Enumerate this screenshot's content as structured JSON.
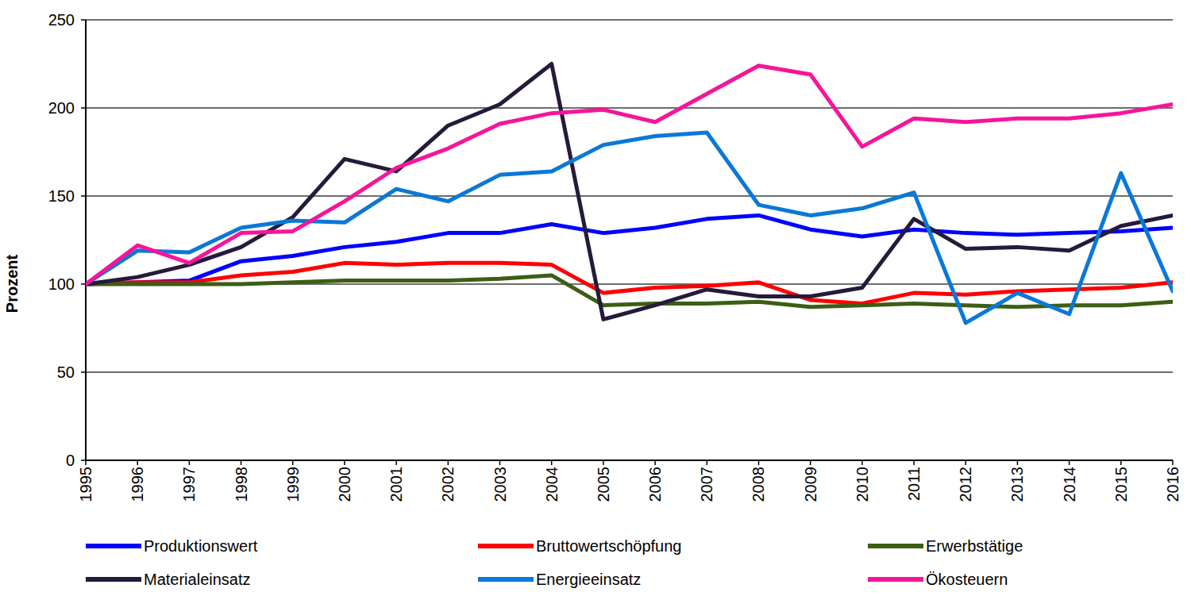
{
  "chart_data": {
    "type": "line",
    "y_label": "Prozent",
    "categories": [
      "1995",
      "1996",
      "1997",
      "1998",
      "1999",
      "2000",
      "2001",
      "2002",
      "2003",
      "2004",
      "2005",
      "2006",
      "2007",
      "2008",
      "2009",
      "2010",
      "2011",
      "2012",
      "2013",
      "2014",
      "2015",
      "2016"
    ],
    "series": [
      {
        "name": "Produktionswert",
        "color": "#0000ff",
        "values": [
          100,
          101,
          102,
          113,
          116,
          121,
          124,
          129,
          129,
          134,
          129,
          132,
          137,
          139,
          131,
          127,
          131,
          129,
          128,
          129,
          130,
          132
        ]
      },
      {
        "name": "Bruttowertschöpfung",
        "color": "#ff0000",
        "values": [
          100,
          101,
          101,
          105,
          107,
          112,
          111,
          112,
          112,
          111,
          95,
          98,
          99,
          101,
          91,
          89,
          95,
          94,
          96,
          97,
          98,
          101
        ]
      },
      {
        "name": "Erwerbstätige",
        "color": "#3b5e14",
        "values": [
          100,
          100,
          100,
          100,
          101,
          102,
          102,
          102,
          103,
          105,
          88,
          89,
          89,
          90,
          87,
          88,
          89,
          88,
          87,
          88,
          88,
          90
        ]
      },
      {
        "name": "Materialeinsatz",
        "color": "#261a3b",
        "values": [
          100,
          104,
          111,
          121,
          138,
          171,
          164,
          190,
          202,
          225,
          80,
          88,
          97,
          93,
          93,
          98,
          137,
          120,
          121,
          119,
          133,
          139
        ]
      },
      {
        "name": "Energieeinsatz",
        "color": "#0a78d7",
        "values": [
          100,
          119,
          118,
          132,
          136,
          135,
          154,
          147,
          162,
          164,
          179,
          184,
          186,
          145,
          139,
          143,
          152,
          78,
          95,
          83,
          163,
          96
        ]
      },
      {
        "name": "Ökosteuern",
        "color": "#f5159a",
        "values": [
          100,
          122,
          112,
          129,
          130,
          147,
          166,
          177,
          191,
          197,
          199,
          192,
          208,
          224,
          219,
          178,
          194,
          192,
          194,
          194,
          197,
          202
        ]
      }
    ],
    "ylim": [
      0,
      250
    ],
    "yticks": [
      0,
      50,
      100,
      150,
      200,
      250
    ],
    "grid": true,
    "legend": "bottom"
  }
}
